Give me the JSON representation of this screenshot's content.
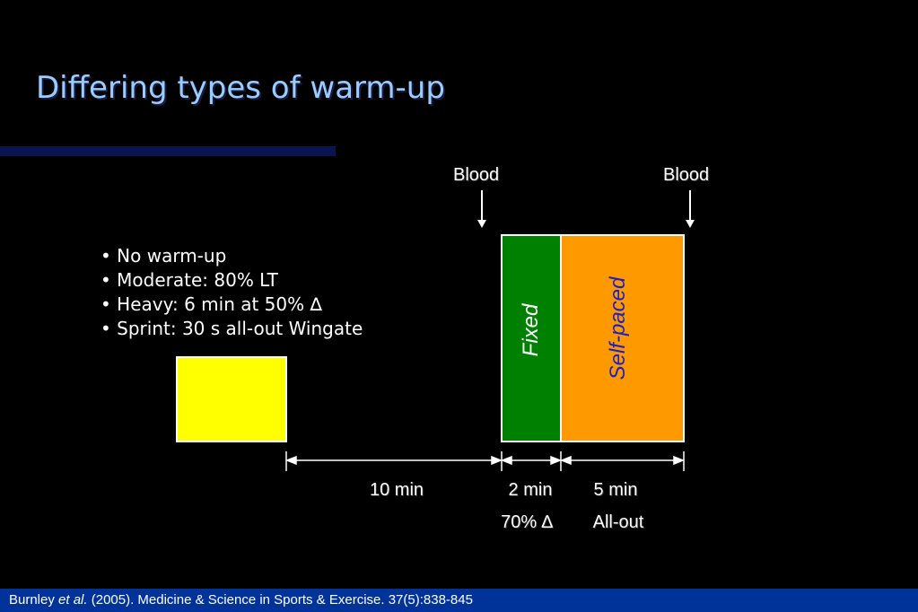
{
  "title": "Differing types of warm-up",
  "bullets": [
    "No warm-up",
    "Moderate: 80% LT",
    "Heavy: 6 min at 50% ∆",
    "Sprint: 30 s all-out Wingate"
  ],
  "blood_labels": [
    "Blood",
    "Blood"
  ],
  "phases": {
    "fixed_label": "Fixed",
    "self_paced_label": "Self-paced"
  },
  "durations": {
    "gap": "10 min",
    "fixed": "2 min",
    "self_paced": "5 min"
  },
  "intensities": {
    "fixed": "70% ∆",
    "self_paced": "All-out"
  },
  "citation": {
    "authors": "Burnley",
    "etal": "et al.",
    "rest": " (2005). Medicine & Science in Sports & Exercise. 37(5):838-845"
  },
  "colors": {
    "warmup_box": "#ffff00",
    "fixed_box": "#008000",
    "self_paced_box": "#ff9900",
    "title": "#99ccff",
    "footer_bar": "#003399",
    "self_paced_text": "#2020c0"
  }
}
